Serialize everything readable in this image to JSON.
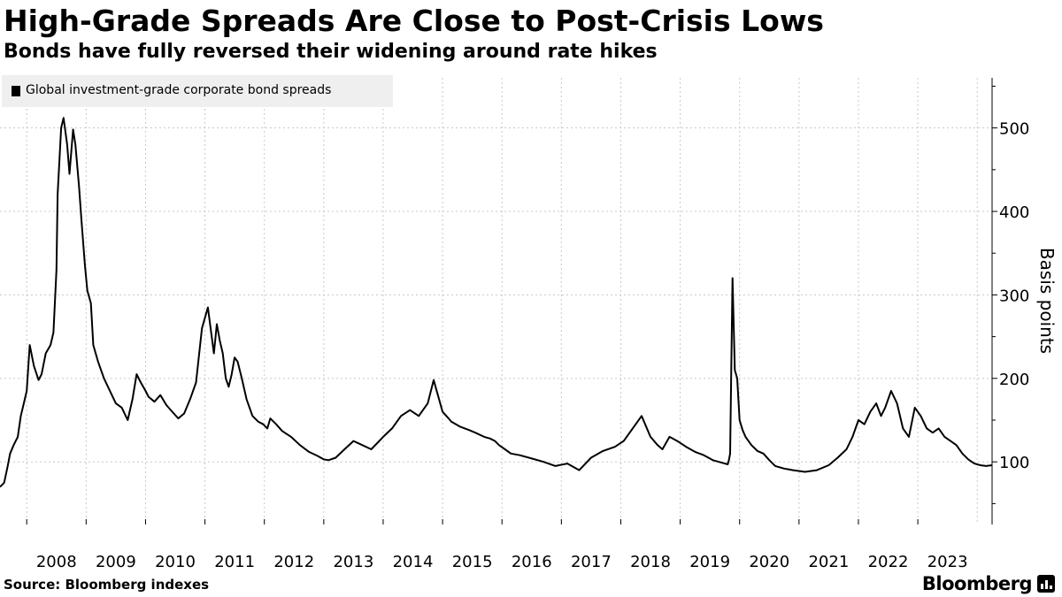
{
  "header": {
    "title": "High-Grade Spreads Are Close to Post-Crisis Lows",
    "subtitle": "Bonds have fully reversed their widening around rate hikes"
  },
  "footer": {
    "source": "Source: Bloomberg indexes",
    "brand": "Bloomberg"
  },
  "colors": {
    "line": "#000000",
    "grid": "#c8c8c8",
    "legend_bg": "#efefef"
  },
  "chart_data": {
    "type": "line",
    "title": "High-Grade Spreads Are Close to Post-Crisis Lows",
    "subtitle": "Bonds have fully reversed their widening around rate hikes",
    "xlabel": "",
    "ylabel": "Basis points",
    "legend": [
      "Global investment-grade corporate bond spreads"
    ],
    "legend_placement": "top-left",
    "grid": true,
    "xlim": [
      2007.55,
      2024.25
    ],
    "ylim": [
      25,
      560
    ],
    "yticks": [
      100,
      200,
      300,
      400,
      500
    ],
    "x_tick_labels": [
      "2008",
      "2009",
      "2010",
      "2011",
      "2012",
      "2013",
      "2014",
      "2015",
      "2016",
      "2017",
      "2018",
      "2019",
      "2020",
      "2021",
      "2022",
      "2023"
    ],
    "series": [
      {
        "name": "Global investment-grade corporate bond spreads",
        "x": [
          2007.55,
          2007.62,
          2007.68,
          2007.72,
          2007.78,
          2007.85,
          2007.9,
          2007.95,
          2008.0,
          2008.05,
          2008.12,
          2008.2,
          2008.25,
          2008.32,
          2008.4,
          2008.45,
          2008.5,
          2008.52,
          2008.58,
          2008.62,
          2008.68,
          2008.72,
          2008.78,
          2008.82,
          2008.88,
          2008.92,
          2008.98,
          2009.02,
          2009.08,
          2009.12,
          2009.2,
          2009.3,
          2009.4,
          2009.5,
          2009.6,
          2009.7,
          2009.78,
          2009.85,
          2009.92,
          2010.0,
          2010.05,
          2010.15,
          2010.25,
          2010.35,
          2010.45,
          2010.55,
          2010.65,
          2010.75,
          2010.85,
          2010.95,
          2011.05,
          2011.15,
          2011.2,
          2011.25,
          2011.3,
          2011.35,
          2011.4,
          2011.45,
          2011.5,
          2011.55,
          2011.62,
          2011.7,
          2011.8,
          2011.9,
          2011.98,
          2012.05,
          2012.1,
          2012.2,
          2012.3,
          2012.45,
          2012.6,
          2012.75,
          2012.9,
          2013.0,
          2013.08,
          2013.2,
          2013.35,
          2013.5,
          2013.65,
          2013.8,
          2014.0,
          2014.15,
          2014.3,
          2014.45,
          2014.6,
          2014.75,
          2014.85,
          2015.0,
          2015.15,
          2015.3,
          2015.45,
          2015.55,
          2015.7,
          2015.8,
          2015.88,
          2015.95,
          2016.05,
          2016.15,
          2016.3,
          2016.5,
          2016.7,
          2016.9,
          2017.1,
          2017.3,
          2017.5,
          2017.7,
          2017.9,
          2018.05,
          2018.2,
          2018.35,
          2018.5,
          2018.62,
          2018.7,
          2018.82,
          2018.95,
          2019.1,
          2019.25,
          2019.4,
          2019.55,
          2019.65,
          2019.75,
          2019.8,
          2019.82,
          2019.84,
          2019.88,
          2019.92,
          2019.96,
          2020.0,
          2020.05,
          2020.1,
          2020.2,
          2020.3,
          2020.4,
          2020.5,
          2020.6,
          2020.75,
          2020.9,
          2021.1,
          2021.3,
          2021.5,
          2021.65,
          2021.8,
          2021.9,
          2022.0,
          2022.1,
          2022.2,
          2022.3,
          2022.38,
          2022.45,
          2022.55,
          2022.65,
          2022.75,
          2022.85,
          2022.95,
          2023.05,
          2023.15,
          2023.25,
          2023.35,
          2023.45,
          2023.55,
          2023.65,
          2023.75,
          2023.85,
          2023.95,
          2024.05,
          2024.15,
          2024.25
        ],
        "values": [
          70,
          75,
          95,
          110,
          120,
          130,
          155,
          170,
          185,
          240,
          215,
          198,
          205,
          230,
          240,
          255,
          330,
          420,
          500,
          512,
          480,
          445,
          498,
          480,
          430,
          390,
          335,
          305,
          290,
          240,
          220,
          200,
          185,
          170,
          165,
          150,
          175,
          205,
          195,
          185,
          178,
          172,
          180,
          168,
          160,
          152,
          158,
          175,
          195,
          260,
          285,
          230,
          265,
          245,
          230,
          200,
          190,
          205,
          225,
          220,
          200,
          175,
          155,
          148,
          145,
          140,
          152,
          145,
          137,
          130,
          120,
          112,
          107,
          103,
          102,
          105,
          115,
          125,
          120,
          115,
          130,
          140,
          155,
          162,
          155,
          170,
          198,
          160,
          148,
          142,
          138,
          135,
          130,
          128,
          125,
          120,
          115,
          110,
          108,
          104,
          100,
          95,
          98,
          90,
          105,
          113,
          118,
          125,
          140,
          155,
          130,
          120,
          115,
          130,
          125,
          118,
          112,
          108,
          102,
          100,
          98,
          97,
          102,
          110,
          320,
          210,
          200,
          150,
          138,
          130,
          120,
          113,
          110,
          102,
          95,
          92,
          90,
          88,
          90,
          96,
          105,
          115,
          130,
          150,
          145,
          160,
          170,
          155,
          165,
          185,
          170,
          140,
          130,
          165,
          155,
          140,
          135,
          140,
          130,
          125,
          120,
          110,
          103,
          98,
          96,
          95,
          96
        ]
      }
    ]
  }
}
